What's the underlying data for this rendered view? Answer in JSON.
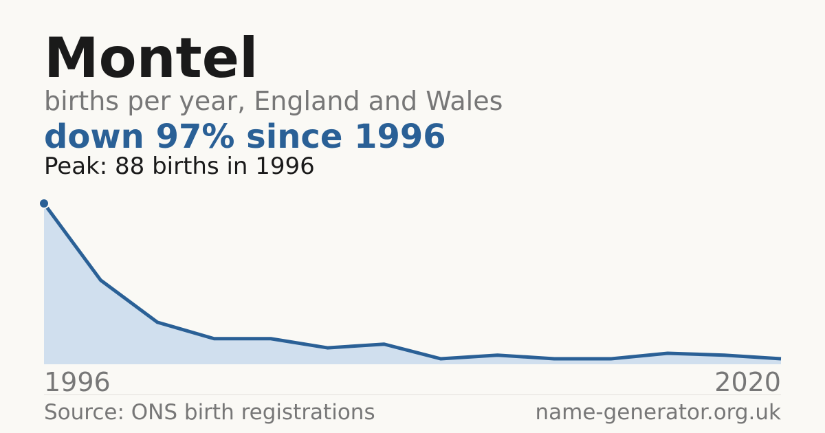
{
  "chart_data": {
    "type": "area",
    "title": "Montel",
    "subtitle": "births per year, England and Wales",
    "headline": "down 97% since 1996",
    "peak_note": "Peak: 88 births in 1996",
    "source": "Source: ONS birth registrations",
    "site": "name-generator.org.uk",
    "categories": [
      "1996",
      null,
      null,
      null,
      null,
      null,
      null,
      null,
      null,
      null,
      null,
      null,
      null,
      "2020"
    ],
    "values": [
      88,
      46,
      23,
      14,
      14,
      9,
      11,
      3,
      5,
      3,
      3,
      6,
      5,
      3
    ],
    "color": "#2a6096",
    "fill": "#d0dfee",
    "ylim": [
      0,
      88
    ]
  }
}
